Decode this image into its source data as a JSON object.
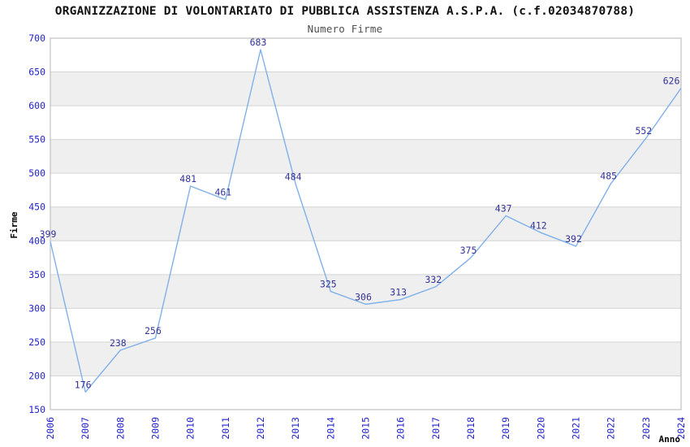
{
  "chart_data": {
    "type": "line",
    "title": "ORGANIZZAZIONE DI VOLONTARIATO DI PUBBLICA ASSISTENZA A.S.P.A. (c.f.02034870788)",
    "subtitle": "Numero Firme",
    "xlabel": "Anno",
    "ylabel": "Firme",
    "categories": [
      "2006",
      "2007",
      "2008",
      "2009",
      "2010",
      "2011",
      "2012",
      "2013",
      "2014",
      "2015",
      "2016",
      "2017",
      "2018",
      "2019",
      "2020",
      "2021",
      "2022",
      "2023",
      "2024"
    ],
    "values": [
      399,
      176,
      238,
      256,
      481,
      461,
      683,
      484,
      325,
      306,
      313,
      332,
      375,
      437,
      412,
      392,
      485,
      552,
      626
    ],
    "ylim": [
      150,
      700
    ],
    "ytick_step": 50,
    "grid": "horizontal-bands",
    "legend": "none",
    "colors": {
      "line": "#7fb0ea",
      "data_label": "#333399",
      "tick_label": "#2323cc",
      "band": "#efefef",
      "gridline": "#d4d4d4",
      "border": "#b4b4b4",
      "title": "#111111",
      "subtitle": "#4f4f4f",
      "axis_title": "#000000",
      "background": "#ffffff"
    }
  }
}
